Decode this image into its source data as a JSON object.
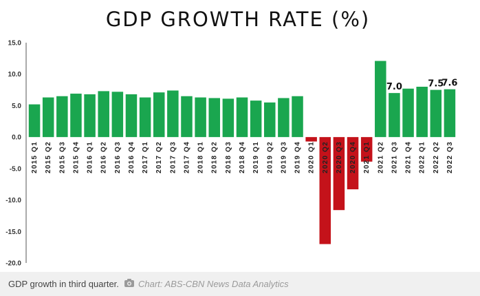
{
  "chart_data": {
    "type": "bar",
    "title": "GDP GROWTH RATE (%)",
    "xlabel": "",
    "ylabel": "",
    "ylim": [
      -20,
      15
    ],
    "yticks": [
      "15.0",
      "10.0",
      "5.0",
      "0.0",
      "-5.0",
      "-10.0",
      "-15.0",
      "-20.0"
    ],
    "grid": false,
    "legend": "none",
    "categories": [
      "2015 Q1",
      "2015 Q2",
      "2015 Q3",
      "2015 Q4",
      "2016 Q1",
      "2016 Q2",
      "2016 Q3",
      "2016 Q4",
      "2017 Q1",
      "2017 Q2",
      "2017 Q3",
      "2017 Q4",
      "2018 Q1",
      "2018 Q2",
      "2018 Q3",
      "2018 Q4",
      "2019 Q1",
      "2019 Q2",
      "2019 Q3",
      "2019 Q4",
      "2020 Q1",
      "2020 Q2",
      "2020 Q3",
      "2020 Q4",
      "2021 Q1",
      "2021 Q2",
      "2021 Q3",
      "2021 Q4",
      "2022 Q1",
      "2022 Q2",
      "2022 Q3"
    ],
    "values": [
      5.2,
      6.3,
      6.5,
      6.9,
      6.8,
      7.3,
      7.2,
      6.8,
      6.3,
      7.1,
      7.4,
      6.5,
      6.3,
      6.2,
      6.1,
      6.3,
      5.8,
      5.5,
      6.2,
      6.5,
      -0.7,
      -17.0,
      -11.6,
      -8.3,
      -3.9,
      12.1,
      7.0,
      7.7,
      8.0,
      7.5,
      7.6
    ],
    "data_labels": [
      {
        "index": 26,
        "text": "7.0"
      },
      {
        "index": 29,
        "text": "7.5"
      },
      {
        "index": 30,
        "text": "7.6"
      }
    ],
    "colors": {
      "positive": "#1aa64f",
      "negative": "#c4121a",
      "axis": "#555555",
      "title": "#111111"
    }
  },
  "footer": {
    "caption": "GDP growth in third quarter.",
    "icon": "camera-icon",
    "credit": "Chart: ABS-CBN News Data Analytics"
  }
}
